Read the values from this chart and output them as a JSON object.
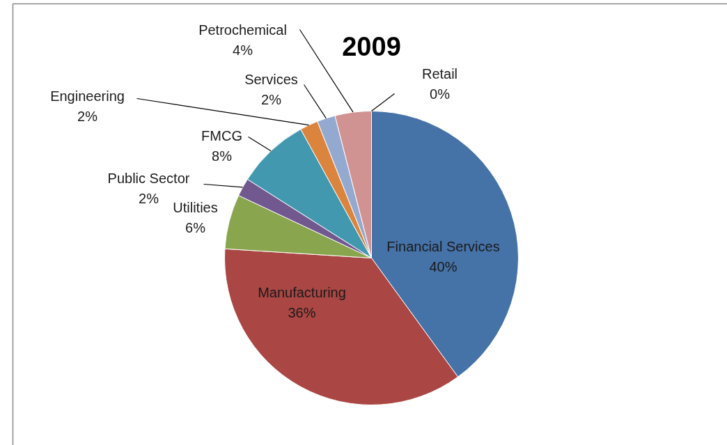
{
  "chart_data": {
    "type": "pie",
    "title": "2009",
    "categories": [
      "Financial Services",
      "Manufacturing",
      "Utilities",
      "Public Sector",
      "FMCG",
      "Engineering",
      "Services",
      "Petrochemical",
      "Retail"
    ],
    "values": [
      40,
      36,
      6,
      2,
      8,
      2,
      2,
      4,
      0
    ],
    "colors": [
      "#4572a7",
      "#aa4643",
      "#89a54e",
      "#71588f",
      "#4198af",
      "#db843d",
      "#93a9cf",
      "#d19392",
      "#b9cd96"
    ],
    "value_labels": [
      "40%",
      "36%",
      "6%",
      "2%",
      "8%",
      "2%",
      "2%",
      "4%",
      "0%"
    ]
  }
}
